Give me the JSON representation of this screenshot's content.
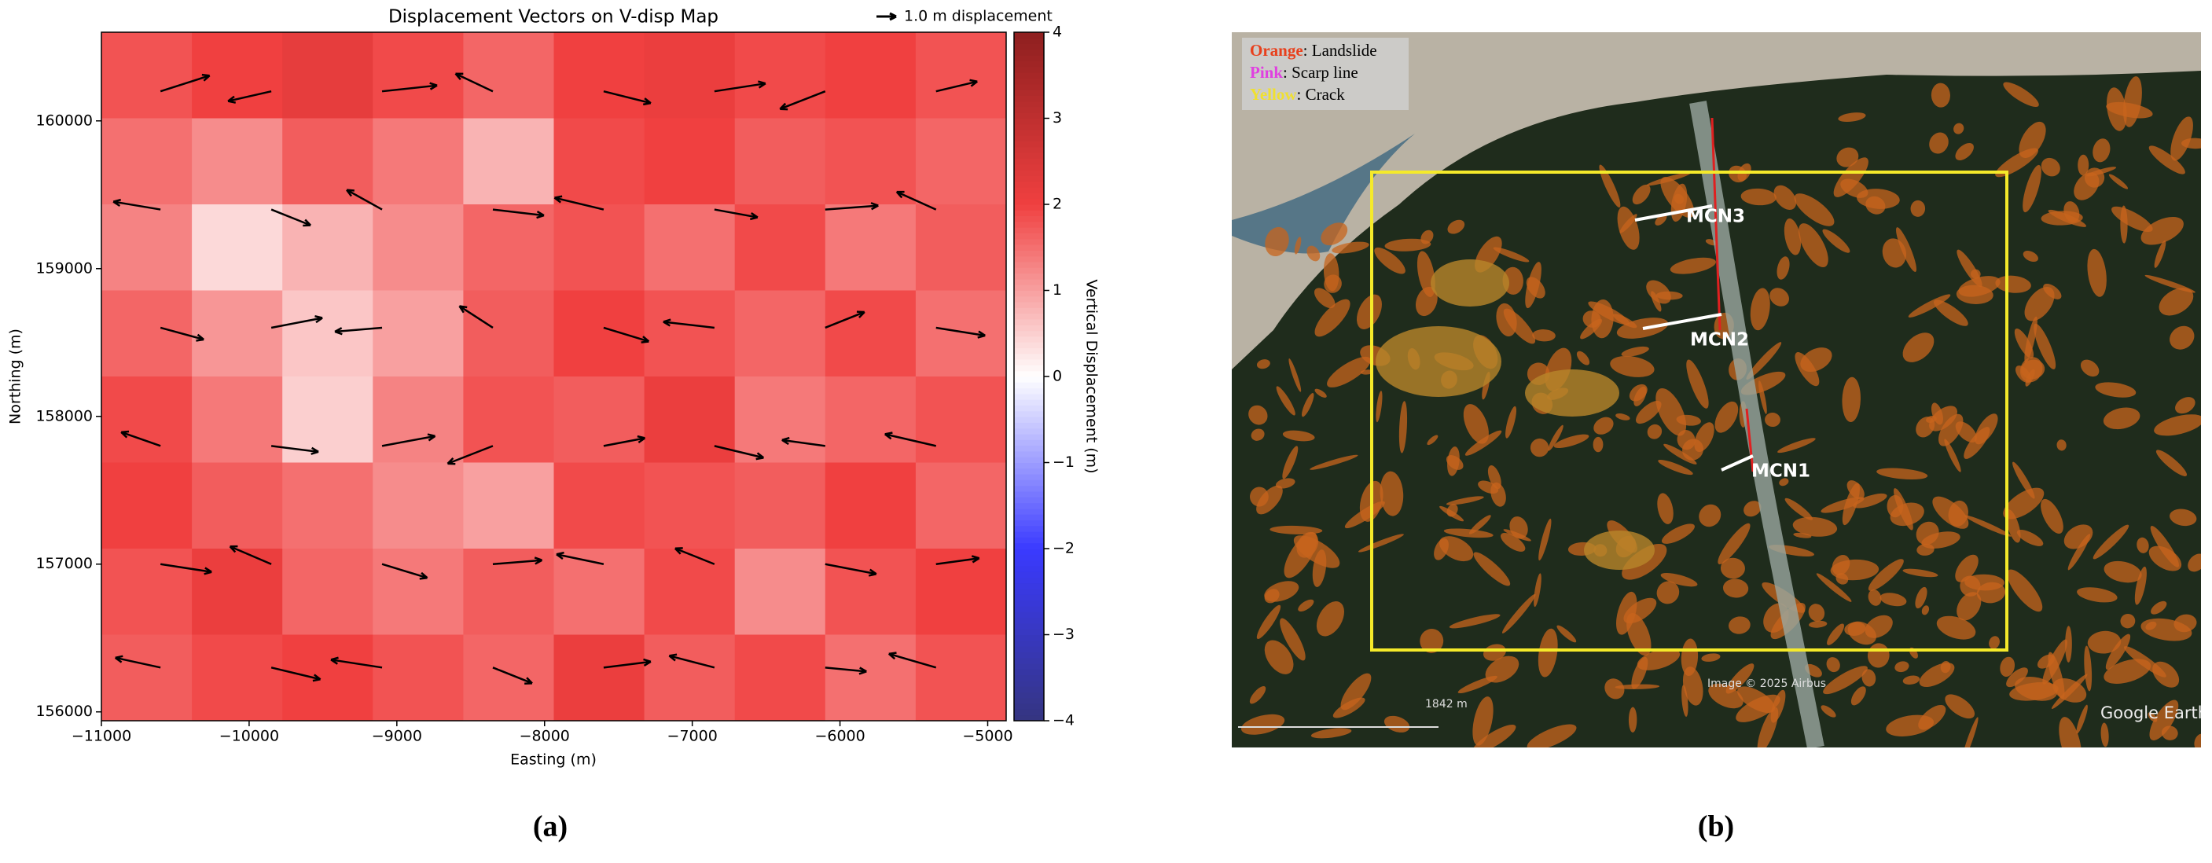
{
  "chart_data": {
    "type": "heatmap",
    "title": "Displacement Vectors on V-disp Map",
    "xlabel": "Easting (m)",
    "ylabel": "Northing (m)",
    "colorbar_label": "Vertical Displacement (m)",
    "xlim": [
      -11000,
      -4875
    ],
    "ylim": [
      155940,
      160600
    ],
    "xticks": [
      {
        "value": -11000,
        "label": "−11000"
      },
      {
        "value": -10000,
        "label": "−10000"
      },
      {
        "value": -9000,
        "label": "−9000"
      },
      {
        "value": -8000,
        "label": "−8000"
      },
      {
        "value": -7000,
        "label": "−7000"
      },
      {
        "value": -6000,
        "label": "−6000"
      },
      {
        "value": -5000,
        "label": "−5000"
      }
    ],
    "yticks": [
      156000,
      157000,
      158000,
      159000,
      160000
    ],
    "clim": [
      -4,
      4
    ],
    "cticks": [
      {
        "value": -4,
        "label": "−4"
      },
      {
        "value": -3,
        "label": "−3"
      },
      {
        "value": -2,
        "label": "−2"
      },
      {
        "value": -1,
        "label": "−1"
      },
      0,
      1,
      2,
      3,
      4
    ],
    "colorscale": [
      [
        -4,
        "#353580"
      ],
      [
        -2,
        "#3a3aff"
      ],
      [
        0,
        "#ffffff"
      ],
      [
        2,
        "#f04040"
      ],
      [
        4,
        "#8e1f1f"
      ]
    ],
    "z": [
      [
        1.8,
        2.0,
        2.2,
        1.9,
        1.6,
        2.0,
        2.1,
        1.9,
        2.0,
        1.8
      ],
      [
        1.5,
        1.2,
        1.7,
        1.4,
        0.8,
        1.9,
        2.0,
        1.7,
        1.8,
        1.6
      ],
      [
        1.3,
        0.4,
        0.8,
        1.2,
        1.6,
        1.8,
        1.5,
        1.9,
        1.4,
        1.7
      ],
      [
        1.6,
        1.1,
        0.6,
        1.0,
        1.7,
        2.0,
        1.8,
        1.6,
        1.9,
        1.5
      ],
      [
        1.9,
        1.4,
        0.5,
        1.3,
        1.8,
        1.7,
        2.1,
        1.4,
        1.6,
        1.8
      ],
      [
        2.0,
        1.7,
        1.5,
        1.2,
        1.0,
        1.9,
        1.8,
        1.7,
        2.0,
        1.6
      ],
      [
        1.8,
        2.1,
        1.6,
        1.4,
        1.7,
        1.5,
        1.9,
        1.2,
        1.8,
        2.0
      ],
      [
        1.7,
        1.9,
        2.0,
        1.8,
        1.6,
        2.1,
        1.7,
        1.9,
        1.5,
        1.8
      ]
    ],
    "arrow_x": [
      -10600,
      -9850,
      -9100,
      -8350,
      -7600,
      -6850,
      -6100,
      -5350
    ],
    "arrow_y": [
      160200,
      159400,
      158600,
      157800,
      157000,
      156300
    ],
    "u": [
      [
        2.5,
        -2.2,
        2.8,
        -1.9,
        2.4,
        2.6,
        -2.3,
        2.1
      ],
      [
        -2.4,
        2.0,
        -1.8,
        2.6,
        -2.5,
        2.2,
        2.7,
        -2.0
      ],
      [
        2.2,
        2.6,
        -2.4,
        -1.7,
        2.3,
        -2.6,
        2.0,
        2.5
      ],
      [
        -2.0,
        2.4,
        2.7,
        -2.3,
        2.1,
        2.5,
        -2.2,
        -2.6
      ],
      [
        2.6,
        -2.1,
        2.3,
        2.5,
        -2.4,
        -2.0,
        2.6,
        2.2
      ],
      [
        -2.3,
        2.5,
        -2.6,
        2.0,
        2.4,
        -2.3,
        2.1,
        -2.4
      ]
    ],
    "v": [
      [
        0.8,
        -0.5,
        0.3,
        0.9,
        -0.6,
        0.4,
        -0.9,
        0.5
      ],
      [
        0.4,
        -0.8,
        1.0,
        -0.3,
        0.6,
        -0.4,
        0.2,
        0.9
      ],
      [
        -0.6,
        0.5,
        -0.2,
        1.1,
        -0.7,
        0.3,
        0.8,
        -0.4
      ],
      [
        0.7,
        -0.3,
        0.5,
        -0.9,
        0.4,
        -0.6,
        0.3,
        0.6
      ],
      [
        -0.4,
        0.9,
        -0.7,
        0.2,
        0.5,
        0.8,
        -0.5,
        0.3
      ],
      [
        0.5,
        -0.6,
        0.4,
        -0.8,
        0.3,
        0.6,
        -0.2,
        0.7
      ]
    ],
    "quiver_key": {
      "length": 1.0,
      "label": "1.0 m displacement"
    },
    "arrow_color": "#000000"
  },
  "map": {
    "legend": [
      {
        "key": "Orange",
        "text": ": Landslide",
        "color": "#e8401c"
      },
      {
        "key": "Pink",
        "text": ": Scarp line",
        "color": "#e040e0"
      },
      {
        "key": "Yellow",
        "text": ": Crack",
        "color": "#f0e030"
      }
    ],
    "stations": [
      "MCN3",
      "MCN2",
      "MCN1"
    ],
    "credit": "Image © 2025 Airbus",
    "scale": "1842 m",
    "brand": "Google Earth"
  },
  "captions": [
    "(a)",
    "(b)"
  ]
}
